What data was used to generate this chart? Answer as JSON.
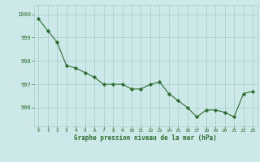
{
  "x": [
    0,
    1,
    2,
    3,
    4,
    5,
    6,
    7,
    8,
    9,
    10,
    11,
    12,
    13,
    14,
    15,
    16,
    17,
    18,
    19,
    20,
    21,
    22,
    23
  ],
  "y": [
    999.8,
    999.3,
    998.8,
    997.8,
    997.7,
    997.5,
    997.3,
    997.0,
    997.0,
    997.0,
    996.8,
    996.8,
    997.0,
    997.1,
    996.6,
    996.3,
    996.0,
    995.6,
    995.9,
    995.9,
    995.8,
    995.6,
    996.6,
    996.7
  ],
  "line_color": "#2d6e2d",
  "marker_color": "#2d6e2d",
  "bg_color": "#cce8e8",
  "grid_color": "#aacccc",
  "xlabel": "Graphe pression niveau de la mer (hPa)",
  "xlabel_color": "#2d6e2d",
  "tick_color": "#2d6e2d",
  "ylim": [
    995.2,
    1000.4
  ],
  "yticks": [
    996,
    997,
    998,
    999,
    1000
  ],
  "xticks": [
    0,
    1,
    2,
    3,
    4,
    5,
    6,
    7,
    8,
    9,
    10,
    11,
    12,
    13,
    14,
    15,
    16,
    17,
    18,
    19,
    20,
    21,
    22,
    23
  ]
}
